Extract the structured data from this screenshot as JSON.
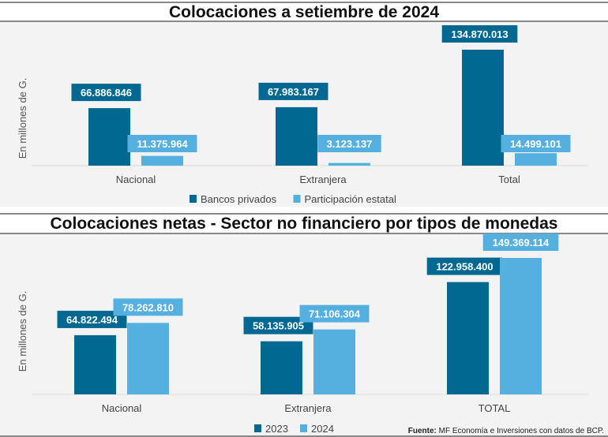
{
  "colors": {
    "dark": "#006891",
    "light": "#55b0e0",
    "panel": "#f3f3f3",
    "rule": "#888888"
  },
  "source": {
    "label": "Fuente:",
    "text": "MF Economía e Inversiones con datos de BCP."
  },
  "chart_data": [
    {
      "type": "bar",
      "title": "Colocaciones a setiembre de 2024",
      "ylabel": "En millones de G.",
      "categories": [
        "Nacional",
        "Extranjera",
        "Total"
      ],
      "series": [
        {
          "name": "Bancos privados",
          "values": [
            66886846,
            67983167,
            134870013
          ],
          "labels": [
            "66.886.846",
            "67.983.167",
            "134.870.013"
          ]
        },
        {
          "name": "Participación estatal",
          "values": [
            11375964,
            3123137,
            14499101
          ],
          "labels": [
            "11.375.964",
            "3.123.137",
            "14.499.101"
          ]
        }
      ],
      "legend": "bottom",
      "grid": false
    },
    {
      "type": "bar",
      "title": "Colocaciones netas - Sector no financiero por tipos de monedas",
      "ylabel": "En millones de G.",
      "categories": [
        "Nacional",
        "Extranjera",
        "TOTAL"
      ],
      "series": [
        {
          "name": "2023",
          "values": [
            64822494,
            58135905,
            122958400
          ],
          "labels": [
            "64.822.494",
            "58.135.905",
            "122.958.400"
          ]
        },
        {
          "name": "2024",
          "values": [
            78262810,
            71106304,
            149369114
          ],
          "labels": [
            "78.262.810",
            "71.106.304",
            "149.369.114"
          ]
        }
      ],
      "legend": "bottom",
      "grid": false
    }
  ]
}
